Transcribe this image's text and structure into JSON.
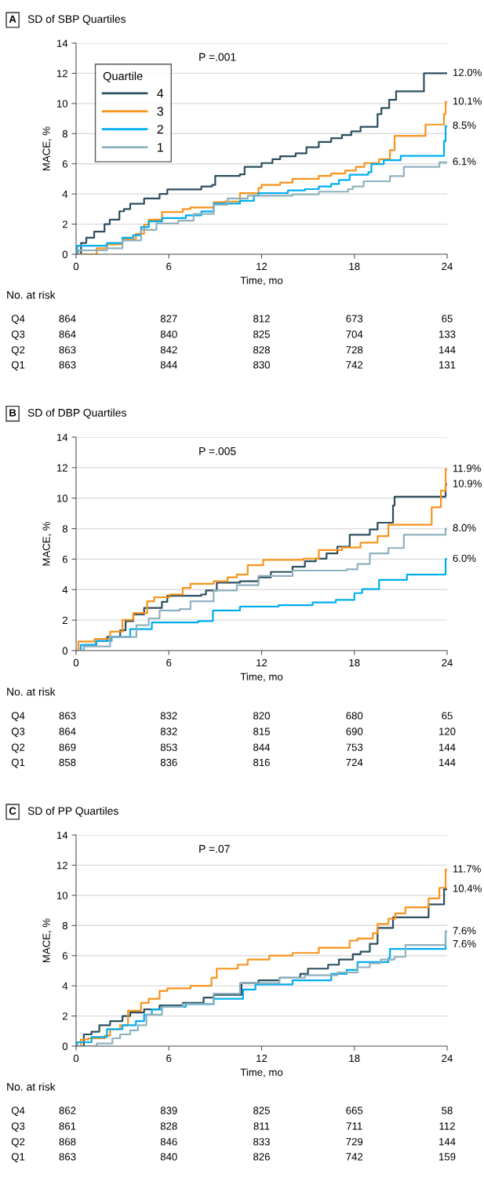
{
  "chart_data": [
    {
      "type": "step",
      "title": "SD of SBP Quartiles",
      "xlabel": "Time, mo",
      "ylabel": "MACE, %",
      "xlim": [
        0,
        24
      ],
      "ylim": [
        0,
        14
      ],
      "xticks": [
        0,
        6,
        12,
        18,
        24
      ],
      "yticks": [
        0,
        2,
        4,
        6,
        8,
        10,
        12,
        14
      ],
      "grid": "y",
      "legend": "top left",
      "legend_title": "Quartile",
      "series": [
        {
          "name": "4",
          "color": "#2d4f5e",
          "x": [
            0,
            0.32,
            0.66,
            1.17,
            1.84,
            2.18,
            2.8,
            3.1,
            3.5,
            4.4,
            5.4,
            5.9,
            8.1,
            8.8,
            9.0,
            10.6,
            10.9,
            12.0,
            12.7,
            13.2,
            14.2,
            14.9,
            15.7,
            16.5,
            17.2,
            17.8,
            18.4,
            19.5,
            19.75,
            20.25,
            20.7,
            22.5,
            24
          ],
          "values": [
            0,
            0.75,
            1.1,
            1.5,
            2.0,
            2.3,
            2.85,
            3.0,
            3.35,
            3.7,
            4.0,
            4.3,
            4.5,
            4.6,
            5.2,
            5.3,
            5.8,
            6.05,
            6.3,
            6.5,
            6.7,
            7.1,
            7.45,
            7.7,
            7.9,
            8.15,
            8.45,
            9.3,
            9.7,
            10.25,
            10.8,
            12.0,
            12.0
          ]
        },
        {
          "name": "3",
          "color": "#f7941d",
          "x": [
            0,
            1.33,
            2.0,
            3.0,
            3.87,
            4.4,
            4.7,
            5.56,
            6.9,
            7.4,
            8.9,
            9.6,
            10.6,
            11.8,
            12.0,
            13.2,
            14.0,
            15.7,
            16.5,
            17.4,
            18.1,
            18.65,
            19.6,
            20.3,
            20.6,
            22.6,
            23.8,
            23.9,
            24
          ],
          "values": [
            0,
            0.4,
            0.66,
            1.0,
            1.36,
            1.97,
            2.3,
            2.8,
            3.0,
            3.1,
            3.45,
            3.5,
            4.05,
            4.4,
            4.6,
            4.75,
            5.0,
            5.2,
            5.35,
            5.55,
            5.8,
            6.05,
            6.3,
            6.9,
            7.85,
            8.6,
            9.3,
            10.1,
            10.1
          ]
        },
        {
          "name": "2",
          "color": "#00aeef",
          "x": [
            0,
            0.07,
            2.0,
            3.0,
            3.7,
            4.2,
            4.7,
            5.56,
            7.1,
            8.1,
            8.9,
            10.6,
            11.5,
            11.8,
            13.7,
            14.8,
            15.7,
            16.5,
            17.0,
            17.7,
            18.9,
            19.1,
            19.9,
            21.0,
            23.8,
            23.9,
            24
          ],
          "values": [
            0,
            0.57,
            0.75,
            1.1,
            1.27,
            1.8,
            2.18,
            2.4,
            2.58,
            2.84,
            3.36,
            3.54,
            3.9,
            4.06,
            4.23,
            4.32,
            4.5,
            4.67,
            4.93,
            5.28,
            5.45,
            5.98,
            6.24,
            6.53,
            7.5,
            8.5,
            8.5
          ]
        },
        {
          "name": "1",
          "color": "#8fb1bf",
          "x": [
            0,
            0.15,
            2.0,
            3.0,
            4.2,
            5.2,
            6.6,
            7.6,
            8.9,
            9.8,
            11.1,
            14.0,
            15.7,
            17.6,
            17.9,
            18.6,
            20.3,
            21.2,
            23.5,
            24
          ],
          "values": [
            0,
            0.26,
            0.4,
            0.92,
            1.62,
            2.05,
            2.23,
            2.67,
            3.28,
            3.7,
            3.88,
            3.97,
            4.15,
            4.32,
            4.5,
            4.84,
            5.19,
            5.8,
            6.1,
            6.1
          ]
        }
      ],
      "annotations": [
        "A",
        "P =.001",
        "12.0%",
        "10.1%",
        "8.5%",
        "6.1%",
        "No. at risk",
        "Q4",
        "864",
        "827",
        "812",
        "673",
        "65",
        "Q3",
        "864",
        "840",
        "825",
        "704",
        "133",
        "Q2",
        "863",
        "842",
        "828",
        "728",
        "144",
        "Q1",
        "863",
        "844",
        "830",
        "742",
        "131"
      ]
    },
    {
      "type": "step",
      "title": "SD of DBP Quartiles",
      "xlabel": "Time, mo",
      "ylabel": "MACE, %",
      "xlim": [
        0,
        24
      ],
      "ylim": [
        0,
        14
      ],
      "xticks": [
        0,
        6,
        12,
        18,
        24
      ],
      "yticks": [
        0,
        2,
        4,
        6,
        8,
        10,
        12,
        14
      ],
      "grid": "y",
      "series": [
        {
          "color": "#2d4f5e",
          "x": [
            0,
            0.5,
            1.3,
            2.0,
            2.85,
            3.2,
            3.7,
            4.4,
            5.55,
            5.9,
            8.1,
            8.4,
            9.1,
            10.6,
            11.8,
            12.6,
            14.0,
            14.8,
            15.5,
            16.2,
            16.9,
            17.7,
            19.0,
            19.5,
            20.5,
            20.6,
            23.9,
            24
          ],
          "values": [
            0,
            0.37,
            0.63,
            0.9,
            1.33,
            1.94,
            2.37,
            2.8,
            3.2,
            3.6,
            3.68,
            3.94,
            4.46,
            4.55,
            4.81,
            5.16,
            5.5,
            5.86,
            6.03,
            6.38,
            6.82,
            7.6,
            7.95,
            8.39,
            9.52,
            10.1,
            10.9,
            10.9
          ]
        },
        {
          "color": "#f7941d",
          "x": [
            0,
            0.15,
            1.2,
            2.2,
            3.0,
            3.7,
            4.6,
            5.05,
            6.05,
            6.9,
            7.4,
            8.9,
            9.8,
            10.4,
            11.1,
            12.1,
            14.7,
            15.7,
            17.2,
            18.4,
            19.5,
            20.2,
            23.0,
            23.6,
            23.9,
            24
          ],
          "values": [
            0,
            0.6,
            0.77,
            1.24,
            2.02,
            2.46,
            3.24,
            3.5,
            3.68,
            4.11,
            4.38,
            4.55,
            4.81,
            4.99,
            5.6,
            5.95,
            6.03,
            6.59,
            6.76,
            7.08,
            7.51,
            8.26,
            9.4,
            10.5,
            11.9,
            11.9
          ]
        },
        {
          "color": "#00aeef",
          "x": [
            0,
            0.3,
            1.3,
            2.3,
            3.5,
            4.9,
            7.9,
            8.85,
            10.6,
            13.1,
            15.3,
            16.8,
            18.0,
            18.5,
            19.6,
            21.4,
            23.9,
            24
          ],
          "values": [
            0,
            0.37,
            0.63,
            0.89,
            1.41,
            1.85,
            1.94,
            2.63,
            2.89,
            2.98,
            3.16,
            3.33,
            3.77,
            4.03,
            4.64,
            4.99,
            6.0,
            6.0
          ]
        },
        {
          "color": "#8fb1bf",
          "x": [
            0,
            0.5,
            2.2,
            3.9,
            4.7,
            5.4,
            6.7,
            7.4,
            8.9,
            10.4,
            11.8,
            14.0,
            17.5,
            18.2,
            19.0,
            20.2,
            21.2,
            23.9,
            24
          ],
          "values": [
            0,
            0.28,
            0.89,
            1.67,
            2.11,
            2.63,
            2.72,
            3.24,
            3.94,
            4.29,
            4.9,
            5.25,
            5.33,
            5.68,
            6.38,
            6.73,
            7.6,
            8.0,
            8.0
          ]
        }
      ],
      "annotations": [
        "B",
        "P =.005",
        "11.9%",
        "10.9%",
        "8.0%",
        "6.0%",
        "No. at risk",
        "Q4",
        "863",
        "832",
        "820",
        "680",
        "65",
        "Q3",
        "864",
        "832",
        "815",
        "690",
        "120",
        "Q2",
        "869",
        "853",
        "844",
        "753",
        "144",
        "Q1",
        "858",
        "836",
        "816",
        "724",
        "144"
      ]
    },
    {
      "type": "step",
      "title": "SD of PP Quartiles",
      "xlabel": "Time, mo",
      "ylabel": "MACE, %",
      "xlim": [
        0,
        24
      ],
      "ylim": [
        0,
        14
      ],
      "xticks": [
        0,
        6,
        12,
        18,
        24
      ],
      "yticks": [
        0,
        2,
        4,
        6,
        8,
        10,
        12,
        14
      ],
      "grid": "y",
      "series": [
        {
          "color": "#2d4f5e",
          "x": [
            0,
            0.5,
            1.0,
            1.5,
            2.2,
            3.0,
            3.5,
            4.4,
            5.4,
            6.9,
            8.25,
            8.9,
            10.7,
            11.8,
            13.15,
            14.5,
            15.0,
            16.3,
            17.0,
            17.9,
            18.4,
            19.0,
            19.5,
            20.5,
            22.8,
            23.8,
            24
          ],
          "values": [
            0,
            0.78,
            0.96,
            1.39,
            1.66,
            2.0,
            2.23,
            2.44,
            2.7,
            2.87,
            3.22,
            3.4,
            4.18,
            4.36,
            4.53,
            4.79,
            5.14,
            5.4,
            5.75,
            6.1,
            6.27,
            6.79,
            7.84,
            8.54,
            9.4,
            10.4,
            10.4
          ]
        },
        {
          "color": "#f7941d",
          "x": [
            0,
            0.3,
            0.8,
            1.85,
            2.2,
            2.85,
            3.36,
            4.2,
            4.7,
            5.4,
            5.9,
            7.4,
            8.76,
            9.1,
            10.45,
            11.1,
            12.5,
            14.0,
            15.7,
            17.7,
            18.2,
            19.2,
            19.5,
            20.2,
            20.65,
            21.3,
            22.8,
            23.5,
            23.9,
            24
          ],
          "values": [
            0,
            0.44,
            0.52,
            0.7,
            1.13,
            1.39,
            2.35,
            2.87,
            3.14,
            3.66,
            3.83,
            4.0,
            4.53,
            5.14,
            5.4,
            5.75,
            6.01,
            6.18,
            6.53,
            7.0,
            7.14,
            7.49,
            8.1,
            8.45,
            8.8,
            9.2,
            9.8,
            10.5,
            11.7,
            11.7
          ]
        },
        {
          "color": "#00aeef",
          "x": [
            0,
            0.07,
            1.0,
            2.0,
            3.0,
            3.87,
            4.4,
            4.9,
            5.56,
            7.1,
            8.9,
            10.8,
            11.6,
            14.0,
            16.5,
            17.5,
            18.2,
            20.2,
            20.3,
            23.9,
            24
          ],
          "values": [
            0,
            0.26,
            0.61,
            1.13,
            1.39,
            1.66,
            2.09,
            2.44,
            2.61,
            2.79,
            3.14,
            3.75,
            4.09,
            4.36,
            4.79,
            5.05,
            5.57,
            5.84,
            6.45,
            7.6,
            7.6
          ]
        },
        {
          "color": "#8fb1bf",
          "x": [
            0,
            1.33,
            2.35,
            2.85,
            3.5,
            4.0,
            4.55,
            5.56,
            6.9,
            8.9,
            10.6,
            13.15,
            14.8,
            16.9,
            18.2,
            19.0,
            19.7,
            20.6,
            21.3,
            23.9,
            24
          ],
          "values": [
            0,
            0.17,
            0.52,
            0.78,
            1.05,
            1.39,
            2.09,
            2.61,
            2.79,
            3.48,
            4.18,
            4.53,
            4.7,
            4.88,
            5.23,
            5.49,
            5.75,
            5.92,
            6.71,
            7.6,
            7.6
          ]
        }
      ],
      "annotations": [
        "C",
        "P =.07",
        "11.7%",
        "10.4%",
        "7.6%",
        "7.6%",
        "No. at risk",
        "Q4",
        "862",
        "839",
        "825",
        "665",
        "58",
        "Q3",
        "861",
        "828",
        "811",
        "711",
        "112",
        "Q2",
        "868",
        "846",
        "833",
        "729",
        "144",
        "Q1",
        "863",
        "840",
        "826",
        "742",
        "159"
      ]
    }
  ]
}
